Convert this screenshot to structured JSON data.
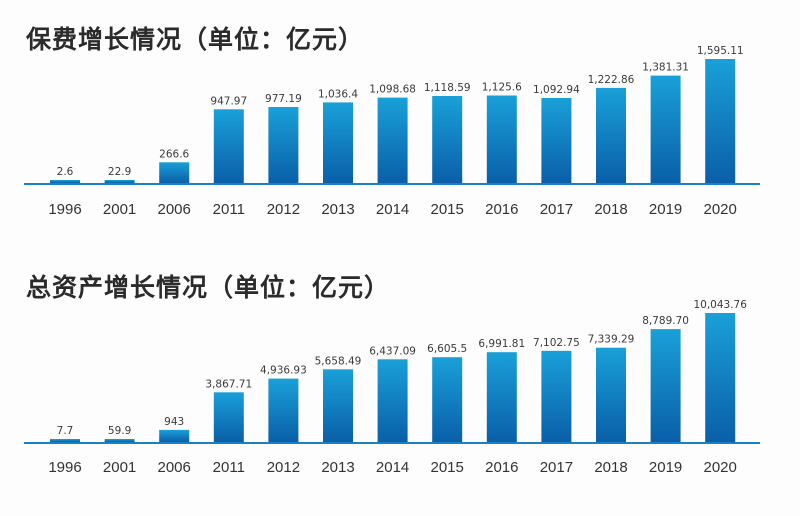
{
  "colors": {
    "bar_top": "#1aa0d8",
    "bar_bottom": "#0a5fa8",
    "axis": "#1a7fc4"
  },
  "chart_data": [
    {
      "type": "bar",
      "title": "保费增长情况（单位：亿元）",
      "categories": [
        "1996",
        "2001",
        "2006",
        "2011",
        "2012",
        "2013",
        "2014",
        "2015",
        "2016",
        "2017",
        "2018",
        "2019",
        "2020"
      ],
      "values": [
        2.6,
        22.9,
        266.6,
        947.97,
        977.19,
        1036.4,
        1098.68,
        1118.59,
        1125.6,
        1092.94,
        1222.86,
        1381.31,
        1595.11
      ],
      "value_labels": [
        "2.6",
        "22.9",
        "266.6",
        "947.97",
        "977.19",
        "1,036.4",
        "1,098.68",
        "1,118.59",
        "1,125.6",
        "1,092.94",
        "1,222.86",
        "1,381.31",
        "1,595.11"
      ],
      "ylim": [
        0,
        1595.11
      ],
      "grid": false,
      "legend": "none"
    },
    {
      "type": "bar",
      "title": "总资产增长情况（单位：亿元）",
      "categories": [
        "1996",
        "2001",
        "2006",
        "2011",
        "2012",
        "2013",
        "2014",
        "2015",
        "2016",
        "2017",
        "2018",
        "2019",
        "2020"
      ],
      "values": [
        7.7,
        59.9,
        943,
        3867.71,
        4936.93,
        5658.49,
        6437.09,
        6605.5,
        6991.81,
        7102.75,
        7339.29,
        8789.7,
        10043.76
      ],
      "value_labels": [
        "7.7",
        "59.9",
        "943",
        "3,867.71",
        "4,936.93",
        "5,658.49",
        "6,437.09",
        "6,605.5",
        "6,991.81",
        "7,102.75",
        "7,339.29",
        "8,789.70",
        "10,043.76"
      ],
      "ylim": [
        0,
        10043.76
      ],
      "grid": false,
      "legend": "none"
    }
  ]
}
